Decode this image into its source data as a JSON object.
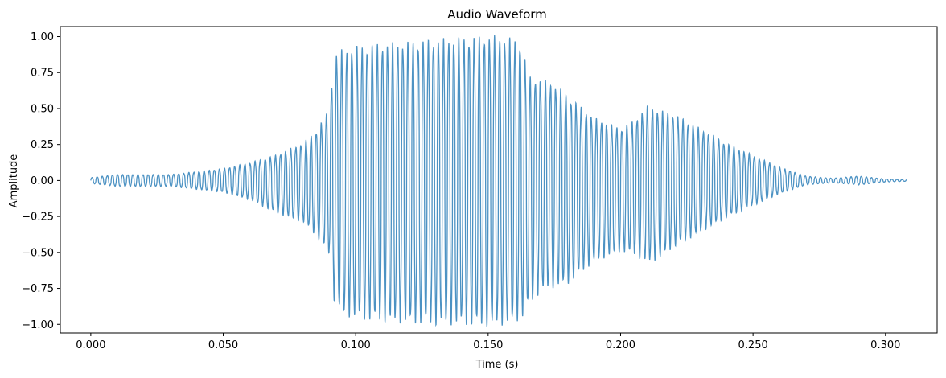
{
  "chart_data": {
    "type": "line",
    "title": "Audio Waveform",
    "xlabel": "Time (s)",
    "ylabel": "Amplitude",
    "xlim": [
      -0.0115,
      0.3195
    ],
    "ylim": [
      -1.06,
      1.07
    ],
    "xticks": [
      0.0,
      0.05,
      0.1,
      0.15,
      0.2,
      0.25,
      0.3
    ],
    "xtick_labels": [
      "0.000",
      "0.050",
      "0.100",
      "0.150",
      "0.200",
      "0.250",
      "0.300"
    ],
    "yticks": [
      1.0,
      0.75,
      0.5,
      0.25,
      0.0,
      -0.25,
      -0.5,
      -0.75,
      -1.0
    ],
    "ytick_labels": [
      "1.00",
      "0.75",
      "0.50",
      "0.25",
      "0.00",
      "−0.25",
      "−0.50",
      "−0.75",
      "−1.00"
    ],
    "grid": false,
    "line_color": "#1f77b4",
    "line_alpha": 0.8,
    "duration": 0.308,
    "oscillation_frequency_hz": 520,
    "envelope": {
      "t": [
        0.0,
        0.01,
        0.02,
        0.03,
        0.04,
        0.05,
        0.06,
        0.07,
        0.08,
        0.085,
        0.09,
        0.092,
        0.095,
        0.1,
        0.11,
        0.12,
        0.13,
        0.14,
        0.15,
        0.155,
        0.16,
        0.163,
        0.165,
        0.17,
        0.175,
        0.18,
        0.19,
        0.2,
        0.205,
        0.21,
        0.215,
        0.22,
        0.23,
        0.24,
        0.25,
        0.26,
        0.27,
        0.28,
        0.29,
        0.3,
        0.308
      ],
      "pos": [
        0.02,
        0.04,
        0.04,
        0.04,
        0.06,
        0.08,
        0.12,
        0.17,
        0.25,
        0.33,
        0.48,
        0.85,
        0.88,
        0.9,
        0.92,
        0.93,
        0.95,
        0.96,
        0.97,
        0.97,
        0.95,
        0.92,
        0.7,
        0.68,
        0.65,
        0.57,
        0.42,
        0.35,
        0.4,
        0.5,
        0.47,
        0.45,
        0.35,
        0.25,
        0.17,
        0.09,
        0.03,
        0.015,
        0.03,
        0.01,
        0.005
      ],
      "neg": [
        -0.02,
        -0.04,
        -0.04,
        -0.04,
        -0.06,
        -0.08,
        -0.13,
        -0.22,
        -0.28,
        -0.37,
        -0.5,
        -0.83,
        -0.9,
        -0.93,
        -0.95,
        -0.96,
        -0.97,
        -0.97,
        -0.98,
        -0.97,
        -0.96,
        -0.92,
        -0.85,
        -0.75,
        -0.72,
        -0.7,
        -0.55,
        -0.48,
        -0.5,
        -0.56,
        -0.52,
        -0.45,
        -0.35,
        -0.25,
        -0.17,
        -0.09,
        -0.03,
        -0.015,
        -0.03,
        -0.01,
        -0.005
      ]
    }
  }
}
